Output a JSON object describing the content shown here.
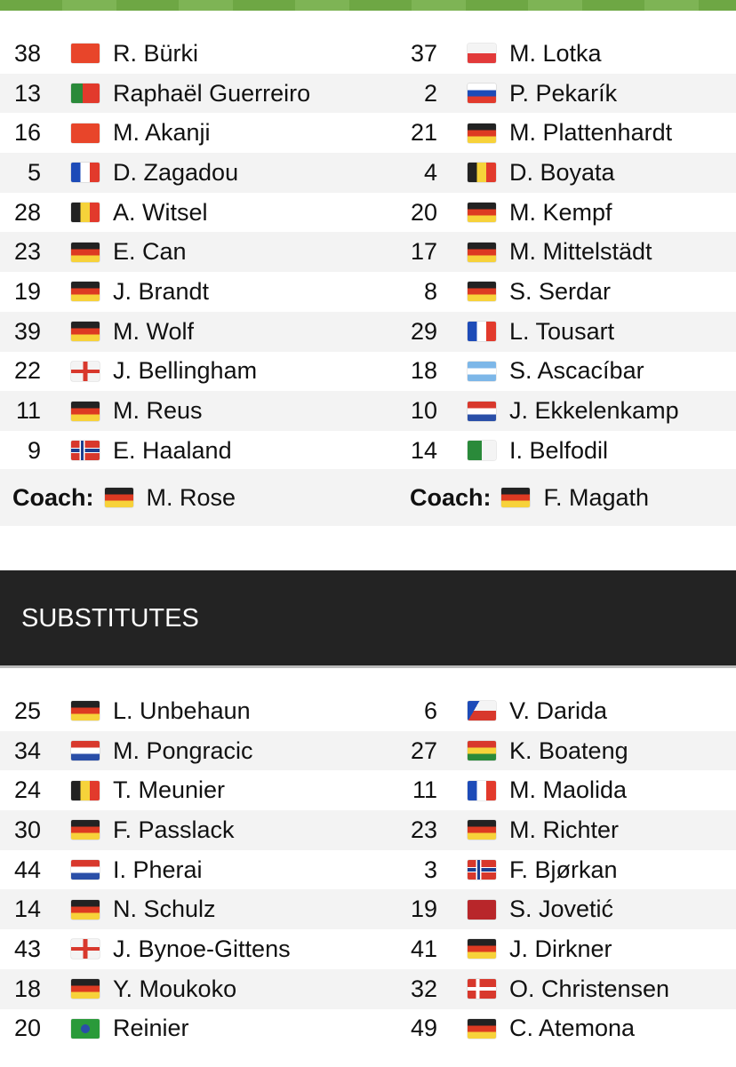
{
  "colors": {
    "accent": "#6ea744",
    "header": "#232323"
  },
  "lineups": [
    [
      {
        "n": "38",
        "f": "ch",
        "p": "R. Bürki"
      },
      {
        "n": "37",
        "f": "pl",
        "p": "M. Lotka"
      }
    ],
    [
      {
        "n": "13",
        "f": "pt",
        "p": "Raphaël Guerreiro"
      },
      {
        "n": "2",
        "f": "sk",
        "p": "P. Pekarík"
      }
    ],
    [
      {
        "n": "16",
        "f": "ch",
        "p": "M. Akanji"
      },
      {
        "n": "21",
        "f": "de",
        "p": "M. Plattenhardt"
      }
    ],
    [
      {
        "n": "5",
        "f": "fr",
        "p": "D. Zagadou"
      },
      {
        "n": "4",
        "f": "be",
        "p": "D. Boyata"
      }
    ],
    [
      {
        "n": "28",
        "f": "be",
        "p": "A. Witsel"
      },
      {
        "n": "20",
        "f": "de",
        "p": "M. Kempf"
      }
    ],
    [
      {
        "n": "23",
        "f": "de",
        "p": "E. Can"
      },
      {
        "n": "17",
        "f": "de",
        "p": "M. Mittelstädt"
      }
    ],
    [
      {
        "n": "19",
        "f": "de",
        "p": "J. Brandt"
      },
      {
        "n": "8",
        "f": "de",
        "p": "S. Serdar"
      }
    ],
    [
      {
        "n": "39",
        "f": "de",
        "p": "M. Wolf"
      },
      {
        "n": "29",
        "f": "fr",
        "p": "L. Tousart"
      }
    ],
    [
      {
        "n": "22",
        "f": "en",
        "p": "J. Bellingham"
      },
      {
        "n": "18",
        "f": "ar",
        "p": "S. Ascacíbar"
      }
    ],
    [
      {
        "n": "11",
        "f": "de",
        "p": "M. Reus"
      },
      {
        "n": "10",
        "f": "nl",
        "p": "J. Ekkelenkamp"
      }
    ],
    [
      {
        "n": "9",
        "f": "no",
        "p": "E. Haaland"
      },
      {
        "n": "14",
        "f": "dz",
        "p": "I. Belfodil"
      }
    ]
  ],
  "coach_label": "Coach:",
  "coaches": [
    {
      "f": "de",
      "p": "M. Rose"
    },
    {
      "f": "de",
      "p": "F. Magath"
    }
  ],
  "substitutes_title": "SUBSTITUTES",
  "substitutes": [
    [
      {
        "n": "25",
        "f": "de",
        "p": "L. Unbehaun"
      },
      {
        "n": "6",
        "f": "cz",
        "p": "V. Darida"
      }
    ],
    [
      {
        "n": "34",
        "f": "hr",
        "p": "M. Pongracic"
      },
      {
        "n": "27",
        "f": "gh",
        "p": "K. Boateng"
      }
    ],
    [
      {
        "n": "24",
        "f": "be",
        "p": "T. Meunier"
      },
      {
        "n": "11",
        "f": "fr",
        "p": "M. Maolida"
      }
    ],
    [
      {
        "n": "30",
        "f": "de",
        "p": "F. Passlack"
      },
      {
        "n": "23",
        "f": "de",
        "p": "M. Richter"
      }
    ],
    [
      {
        "n": "44",
        "f": "nl",
        "p": "I. Pherai"
      },
      {
        "n": "3",
        "f": "no",
        "p": "F. Bjørkan"
      }
    ],
    [
      {
        "n": "14",
        "f": "de",
        "p": "N. Schulz"
      },
      {
        "n": "19",
        "f": "me",
        "p": "S. Jovetić"
      }
    ],
    [
      {
        "n": "43",
        "f": "en",
        "p": "J. Bynoe-Gittens"
      },
      {
        "n": "41",
        "f": "de",
        "p": "J. Dirkner"
      }
    ],
    [
      {
        "n": "18",
        "f": "de",
        "p": "Y. Moukoko"
      },
      {
        "n": "32",
        "f": "dk",
        "p": "O. Christensen"
      }
    ],
    [
      {
        "n": "20",
        "f": "br",
        "p": "Reinier"
      },
      {
        "n": "49",
        "f": "de",
        "p": "C. Atemona"
      }
    ]
  ]
}
